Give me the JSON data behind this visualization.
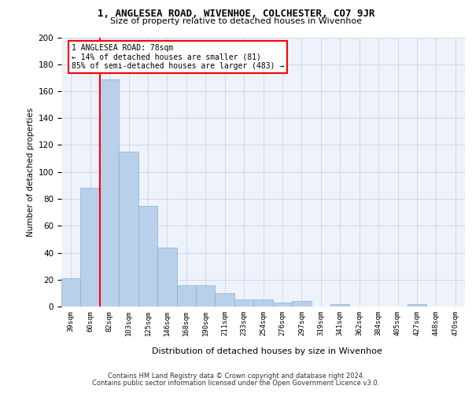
{
  "title": "1, ANGLESEA ROAD, WIVENHOE, COLCHESTER, CO7 9JR",
  "subtitle": "Size of property relative to detached houses in Wivenhoe",
  "xlabel": "Distribution of detached houses by size in Wivenhoe",
  "ylabel": "Number of detached properties",
  "categories": [
    "39sqm",
    "60sqm",
    "82sqm",
    "103sqm",
    "125sqm",
    "146sqm",
    "168sqm",
    "190sqm",
    "211sqm",
    "233sqm",
    "254sqm",
    "276sqm",
    "297sqm",
    "319sqm",
    "341sqm",
    "362sqm",
    "384sqm",
    "405sqm",
    "427sqm",
    "448sqm",
    "470sqm"
  ],
  "values": [
    21,
    88,
    169,
    115,
    75,
    44,
    16,
    16,
    10,
    5,
    5,
    3,
    4,
    0,
    2,
    0,
    0,
    0,
    2,
    0,
    0
  ],
  "bar_color": "#b8d0ea",
  "bar_edge_color": "#8aafd4",
  "vline_x_index": 1,
  "vline_color": "red",
  "annotation_text": "1 ANGLESEA ROAD: 78sqm\n← 14% of detached houses are smaller (81)\n85% of semi-detached houses are larger (483) →",
  "annotation_box_facecolor": "white",
  "annotation_box_edgecolor": "red",
  "ylim": [
    0,
    200
  ],
  "yticks": [
    0,
    20,
    40,
    60,
    80,
    100,
    120,
    140,
    160,
    180,
    200
  ],
  "background_color": "#eef2fb",
  "grid_color": "#c5cde8",
  "footer_line1": "Contains HM Land Registry data © Crown copyright and database right 2024.",
  "footer_line2": "Contains public sector information licensed under the Open Government Licence v3.0."
}
